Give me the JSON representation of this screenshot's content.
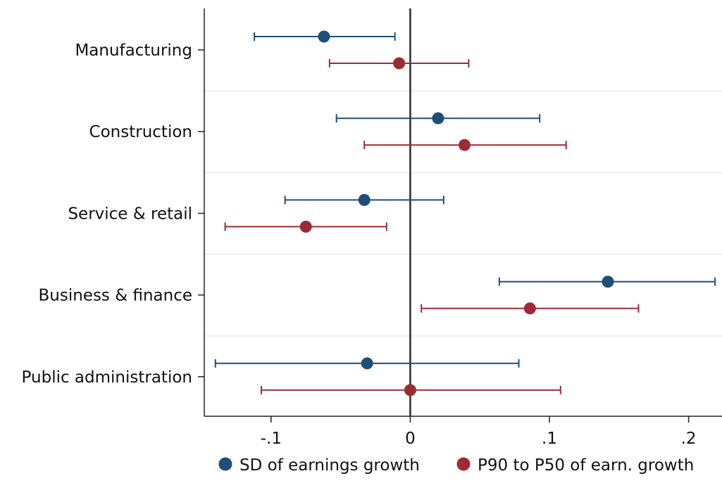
{
  "chart_data": {
    "type": "scatter",
    "subtype": "coefficient-plot-horizontal",
    "categories": [
      "Manufacturing",
      "Construction",
      "Service & retail",
      "Business & finance",
      "Public administration"
    ],
    "series": [
      {
        "name": "SD of earnings growth",
        "color": "#1f4e79",
        "estimates": [
          -0.062,
          0.02,
          -0.033,
          0.142,
          -0.031
        ],
        "ci_low": [
          -0.112,
          -0.053,
          -0.09,
          0.064,
          -0.14
        ],
        "ci_high": [
          -0.011,
          0.093,
          0.024,
          0.219,
          0.078
        ]
      },
      {
        "name": "P90 to P50 of earn. growth",
        "color": "#9b2c35",
        "estimates": [
          -0.008,
          0.039,
          -0.075,
          0.086,
          0.0
        ],
        "ci_low": [
          -0.058,
          -0.033,
          -0.133,
          0.008,
          -0.107
        ],
        "ci_high": [
          0.042,
          0.112,
          -0.017,
          0.164,
          0.108
        ]
      }
    ],
    "x_ticks": [
      -0.1,
      0,
      0.1,
      0.2
    ],
    "x_tick_labels": [
      "-.1",
      "0",
      ".1",
      ".2"
    ],
    "xlim": [
      -0.148,
      0.224
    ],
    "reference_line_x": 0,
    "grid": "horizontal",
    "legend_position": "bottom",
    "title": "",
    "xlabel": "",
    "ylabel": ""
  }
}
